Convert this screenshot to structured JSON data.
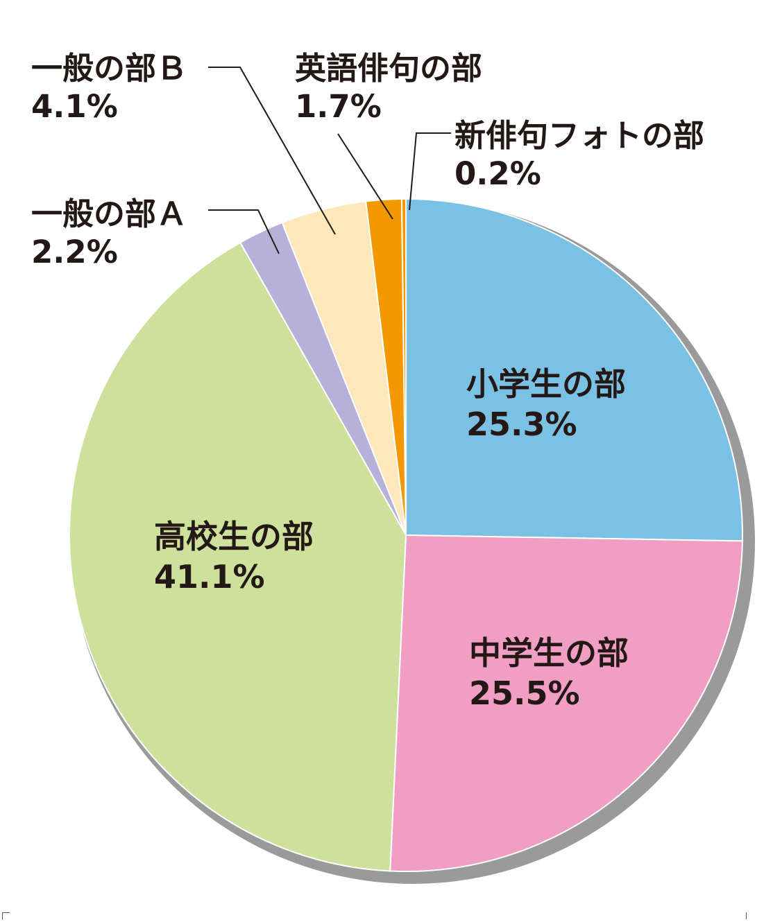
{
  "chart_data": {
    "type": "pie",
    "start_angle_deg": 0,
    "direction": "clockwise",
    "slices": [
      {
        "label": "小学生の部",
        "value": 25.3,
        "value_label": "25.3%",
        "color": "#7bc1e3",
        "label_placement": "inside"
      },
      {
        "label": "中学生の部",
        "value": 25.5,
        "value_label": "25.5%",
        "color": "#f09ec4",
        "label_placement": "inside"
      },
      {
        "label": "高校生の部",
        "value": 41.1,
        "value_label": "41.1%",
        "color": "#cde19c",
        "label_placement": "inside"
      },
      {
        "label": "一般の部Ａ",
        "value": 2.2,
        "value_label": "2.2%",
        "color": "#b7b0d8",
        "label_placement": "outside"
      },
      {
        "label": "一般の部Ｂ",
        "value": 4.1,
        "value_label": "4.1%",
        "color": "#fde7bb",
        "label_placement": "outside"
      },
      {
        "label": "英語俳句の部",
        "value": 1.7,
        "value_label": "1.7%",
        "color": "#f39800",
        "label_placement": "outside"
      },
      {
        "label": "新俳句フォトの部",
        "value": 0.2,
        "value_label": "0.2%",
        "color": "#f39800",
        "label_placement": "outside"
      }
    ],
    "shadow_color": "#9a9a9a",
    "edge_color": "#ffffff",
    "text_color": "#231815"
  }
}
